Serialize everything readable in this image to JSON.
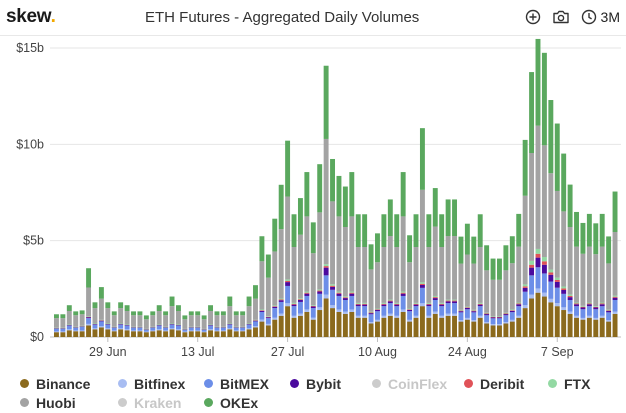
{
  "header": {
    "logo_text": "skew",
    "logo_dot": ".",
    "title": "ETH Futures - Aggregated Daily Volumes",
    "range_label": "3M"
  },
  "icons": [
    "plus-circle-icon",
    "camera-icon",
    "clock-icon"
  ],
  "chart_data": {
    "type": "bar",
    "stacked": true,
    "title": "ETH Futures - Aggregated Daily Volumes",
    "ylabel": "",
    "xlabel": "",
    "ylim": [
      0,
      15
    ],
    "y_unit": "USD billions",
    "y_ticks": [
      0,
      5,
      10,
      15
    ],
    "y_tick_labels": [
      "$0",
      "$5b",
      "$10b",
      "$15b"
    ],
    "x_tick_labels": [
      "29 Jun",
      "13 Jul",
      "27 Jul",
      "10 Aug",
      "24 Aug",
      "7 Sep"
    ],
    "x_tick_indices": [
      8,
      22,
      36,
      50,
      64,
      78
    ],
    "grid": true,
    "legend": "bottom",
    "series": [
      {
        "name": "Binance",
        "color": "#8b6a1d",
        "visible": true,
        "values": [
          0.25,
          0.25,
          0.35,
          0.3,
          0.3,
          0.6,
          0.4,
          0.5,
          0.4,
          0.3,
          0.4,
          0.35,
          0.3,
          0.3,
          0.25,
          0.3,
          0.35,
          0.3,
          0.4,
          0.35,
          0.25,
          0.3,
          0.3,
          0.25,
          0.35,
          0.3,
          0.3,
          0.4,
          0.3,
          0.3,
          0.4,
          0.5,
          0.8,
          0.6,
          0.9,
          1.1,
          1.6,
          1.0,
          1.1,
          1.3,
          0.9,
          1.4,
          2.0,
          1.5,
          1.3,
          1.2,
          1.3,
          1.0,
          1.0,
          0.7,
          0.8,
          1.0,
          1.1,
          1.0,
          1.3,
          0.8,
          1.0,
          1.6,
          1.0,
          1.2,
          1.0,
          1.1,
          1.1,
          0.8,
          0.9,
          0.8,
          1.0,
          0.7,
          0.6,
          0.6,
          0.7,
          0.8,
          1.0,
          1.5,
          2.0,
          2.3,
          2.1,
          1.8,
          1.6,
          1.4,
          1.2,
          1.0,
          0.9,
          1.0,
          0.9,
          1.0,
          0.8,
          1.2
        ]
      },
      {
        "name": "Bitfinex",
        "color": "#a8bdf2",
        "visible": true,
        "values": [
          0.04,
          0.04,
          0.05,
          0.04,
          0.04,
          0.08,
          0.05,
          0.06,
          0.05,
          0.04,
          0.05,
          0.05,
          0.04,
          0.04,
          0.03,
          0.04,
          0.05,
          0.04,
          0.05,
          0.05,
          0.03,
          0.04,
          0.04,
          0.03,
          0.05,
          0.04,
          0.04,
          0.05,
          0.04,
          0.04,
          0.05,
          0.06,
          0.1,
          0.08,
          0.1,
          0.12,
          0.15,
          0.1,
          0.12,
          0.13,
          0.1,
          0.14,
          0.2,
          0.15,
          0.13,
          0.12,
          0.13,
          0.1,
          0.1,
          0.08,
          0.09,
          0.1,
          0.11,
          0.1,
          0.13,
          0.09,
          0.1,
          0.15,
          0.1,
          0.12,
          0.1,
          0.11,
          0.11,
          0.08,
          0.09,
          0.08,
          0.1,
          0.08,
          0.07,
          0.07,
          0.08,
          0.09,
          0.1,
          0.15,
          0.2,
          0.22,
          0.2,
          0.18,
          0.16,
          0.14,
          0.12,
          0.1,
          0.09,
          0.1,
          0.09,
          0.1,
          0.08,
          0.12
        ]
      },
      {
        "name": "BitMEX",
        "color": "#6c8ee8",
        "visible": true,
        "values": [
          0.15,
          0.15,
          0.2,
          0.15,
          0.2,
          0.3,
          0.2,
          0.25,
          0.2,
          0.15,
          0.2,
          0.2,
          0.15,
          0.15,
          0.1,
          0.15,
          0.2,
          0.15,
          0.2,
          0.2,
          0.1,
          0.15,
          0.15,
          0.1,
          0.2,
          0.15,
          0.15,
          0.2,
          0.15,
          0.15,
          0.2,
          0.25,
          0.4,
          0.3,
          0.5,
          0.6,
          0.9,
          0.5,
          0.6,
          0.7,
          0.5,
          0.7,
          1.0,
          0.8,
          0.7,
          0.6,
          0.7,
          0.5,
          0.5,
          0.4,
          0.45,
          0.5,
          0.55,
          0.5,
          0.7,
          0.45,
          0.5,
          0.8,
          0.5,
          0.6,
          0.5,
          0.55,
          0.55,
          0.4,
          0.45,
          0.4,
          0.5,
          0.35,
          0.3,
          0.3,
          0.35,
          0.4,
          0.5,
          0.7,
          1.0,
          1.1,
          1.0,
          0.9,
          0.8,
          0.7,
          0.6,
          0.5,
          0.45,
          0.5,
          0.45,
          0.5,
          0.4,
          0.6
        ]
      },
      {
        "name": "Bybit",
        "color": "#4b0a9e",
        "visible": true,
        "values": [
          0.02,
          0.02,
          0.03,
          0.02,
          0.02,
          0.05,
          0.03,
          0.04,
          0.03,
          0.02,
          0.03,
          0.03,
          0.02,
          0.02,
          0.02,
          0.02,
          0.03,
          0.02,
          0.03,
          0.03,
          0.02,
          0.02,
          0.02,
          0.02,
          0.03,
          0.02,
          0.02,
          0.03,
          0.02,
          0.02,
          0.03,
          0.04,
          0.06,
          0.05,
          0.07,
          0.09,
          0.2,
          0.08,
          0.1,
          0.12,
          0.08,
          0.12,
          0.4,
          0.15,
          0.12,
          0.1,
          0.12,
          0.08,
          0.08,
          0.06,
          0.07,
          0.08,
          0.09,
          0.08,
          0.12,
          0.07,
          0.08,
          0.15,
          0.08,
          0.1,
          0.08,
          0.09,
          0.09,
          0.06,
          0.07,
          0.06,
          0.08,
          0.06,
          0.05,
          0.05,
          0.06,
          0.07,
          0.1,
          0.2,
          0.4,
          0.5,
          0.45,
          0.35,
          0.3,
          0.2,
          0.15,
          0.1,
          0.09,
          0.1,
          0.09,
          0.1,
          0.07,
          0.12
        ]
      },
      {
        "name": "CoinFlex",
        "color": "#d3d3d3",
        "visible": false,
        "values": [
          0,
          0,
          0,
          0,
          0,
          0,
          0,
          0,
          0,
          0,
          0,
          0,
          0,
          0,
          0,
          0,
          0,
          0,
          0,
          0,
          0,
          0,
          0,
          0,
          0,
          0,
          0,
          0,
          0,
          0,
          0,
          0,
          0,
          0,
          0,
          0,
          0,
          0,
          0,
          0,
          0,
          0,
          0,
          0,
          0,
          0,
          0,
          0,
          0,
          0,
          0,
          0,
          0,
          0,
          0,
          0,
          0,
          0,
          0,
          0,
          0,
          0,
          0,
          0,
          0,
          0,
          0,
          0,
          0,
          0,
          0,
          0,
          0,
          0,
          0,
          0,
          0,
          0,
          0,
          0,
          0,
          0,
          0,
          0,
          0,
          0,
          0,
          0
        ]
      },
      {
        "name": "Deribit",
        "color": "#e05258",
        "visible": true,
        "values": [
          0.01,
          0.01,
          0.01,
          0.01,
          0.01,
          0.02,
          0.01,
          0.02,
          0.01,
          0.01,
          0.01,
          0.01,
          0.01,
          0.01,
          0.01,
          0.01,
          0.01,
          0.01,
          0.01,
          0.01,
          0.01,
          0.01,
          0.01,
          0.01,
          0.01,
          0.01,
          0.01,
          0.01,
          0.01,
          0.01,
          0.01,
          0.02,
          0.03,
          0.02,
          0.03,
          0.04,
          0.06,
          0.04,
          0.04,
          0.05,
          0.03,
          0.05,
          0.08,
          0.06,
          0.05,
          0.04,
          0.05,
          0.04,
          0.04,
          0.03,
          0.03,
          0.04,
          0.04,
          0.04,
          0.05,
          0.03,
          0.04,
          0.06,
          0.04,
          0.05,
          0.04,
          0.04,
          0.04,
          0.03,
          0.03,
          0.03,
          0.04,
          0.03,
          0.02,
          0.02,
          0.03,
          0.03,
          0.04,
          0.08,
          0.15,
          0.2,
          0.18,
          0.12,
          0.1,
          0.08,
          0.06,
          0.04,
          0.04,
          0.04,
          0.03,
          0.04,
          0.03,
          0.05
        ]
      },
      {
        "name": "FTX",
        "color": "#93d9a3",
        "visible": true,
        "values": [
          0.01,
          0.01,
          0.01,
          0.01,
          0.01,
          0.02,
          0.01,
          0.02,
          0.01,
          0.01,
          0.01,
          0.01,
          0.01,
          0.01,
          0.01,
          0.01,
          0.01,
          0.01,
          0.01,
          0.01,
          0.01,
          0.01,
          0.01,
          0.01,
          0.01,
          0.01,
          0.01,
          0.01,
          0.01,
          0.01,
          0.01,
          0.02,
          0.04,
          0.03,
          0.04,
          0.05,
          0.08,
          0.05,
          0.05,
          0.06,
          0.04,
          0.06,
          0.1,
          0.08,
          0.06,
          0.05,
          0.06,
          0.05,
          0.05,
          0.04,
          0.04,
          0.05,
          0.05,
          0.05,
          0.06,
          0.04,
          0.05,
          0.08,
          0.05,
          0.06,
          0.05,
          0.05,
          0.05,
          0.04,
          0.04,
          0.04,
          0.05,
          0.04,
          0.03,
          0.03,
          0.04,
          0.04,
          0.05,
          0.1,
          0.2,
          0.25,
          0.22,
          0.15,
          0.12,
          0.1,
          0.08,
          0.05,
          0.05,
          0.05,
          0.04,
          0.05,
          0.04,
          0.06
        ]
      },
      {
        "name": "Huobi",
        "color": "#a3a3a3",
        "visible": true,
        "values": [
          0.5,
          0.5,
          0.7,
          0.6,
          0.6,
          1.5,
          0.8,
          1.1,
          0.8,
          0.6,
          0.8,
          0.7,
          0.6,
          0.6,
          0.5,
          0.6,
          0.7,
          0.6,
          0.9,
          0.7,
          0.5,
          0.6,
          0.6,
          0.5,
          0.7,
          0.6,
          0.6,
          0.9,
          0.6,
          0.6,
          0.9,
          1.1,
          2.5,
          2.0,
          2.8,
          3.6,
          4.3,
          2.9,
          3.3,
          3.9,
          2.7,
          4.0,
          6.5,
          4.3,
          3.9,
          3.6,
          3.9,
          2.9,
          2.9,
          2.2,
          2.4,
          2.9,
          3.3,
          2.9,
          3.9,
          2.4,
          2.9,
          4.8,
          2.9,
          3.6,
          2.9,
          3.3,
          3.3,
          2.4,
          2.7,
          2.4,
          2.9,
          2.2,
          1.9,
          1.9,
          2.2,
          2.4,
          2.9,
          4.6,
          5.6,
          6.4,
          5.8,
          5.0,
          4.5,
          3.9,
          3.5,
          2.9,
          2.7,
          2.9,
          2.7,
          2.9,
          2.4,
          3.3
        ]
      },
      {
        "name": "Kraken",
        "color": "#d9d9d9",
        "visible": false,
        "values": [
          0,
          0,
          0,
          0,
          0,
          0,
          0,
          0,
          0,
          0,
          0,
          0,
          0,
          0,
          0,
          0,
          0,
          0,
          0,
          0,
          0,
          0,
          0,
          0,
          0,
          0,
          0,
          0,
          0,
          0,
          0,
          0,
          0,
          0,
          0,
          0,
          0,
          0,
          0,
          0,
          0,
          0,
          0,
          0,
          0,
          0,
          0,
          0,
          0,
          0,
          0,
          0,
          0,
          0,
          0,
          0,
          0,
          0,
          0,
          0,
          0,
          0,
          0,
          0,
          0,
          0,
          0,
          0,
          0,
          0,
          0,
          0,
          0,
          0,
          0,
          0,
          0,
          0,
          0,
          0,
          0,
          0,
          0,
          0,
          0,
          0,
          0,
          0
        ]
      },
      {
        "name": "OKEx",
        "color": "#5aa85e",
        "visible": true,
        "values": [
          0.2,
          0.2,
          0.3,
          0.2,
          0.2,
          1.0,
          0.3,
          0.6,
          0.3,
          0.2,
          0.3,
          0.3,
          0.2,
          0.2,
          0.2,
          0.2,
          0.3,
          0.2,
          0.5,
          0.3,
          0.2,
          0.2,
          0.2,
          0.2,
          0.3,
          0.2,
          0.2,
          0.5,
          0.2,
          0.2,
          0.5,
          0.7,
          1.3,
          1.2,
          1.7,
          2.3,
          2.9,
          1.7,
          1.9,
          2.3,
          1.6,
          2.5,
          3.8,
          2.2,
          2.1,
          2.1,
          2.3,
          1.7,
          1.7,
          1.3,
          1.5,
          1.7,
          1.9,
          1.7,
          2.3,
          1.4,
          1.7,
          3.2,
          1.7,
          2.0,
          1.7,
          1.9,
          1.9,
          1.4,
          1.6,
          1.4,
          1.7,
          1.3,
          1.1,
          1.1,
          1.3,
          1.4,
          1.7,
          2.9,
          4.2,
          4.5,
          4.8,
          3.8,
          3.5,
          3.0,
          2.2,
          1.8,
          1.6,
          1.7,
          1.6,
          1.7,
          1.4,
          2.1
        ]
      }
    ]
  }
}
